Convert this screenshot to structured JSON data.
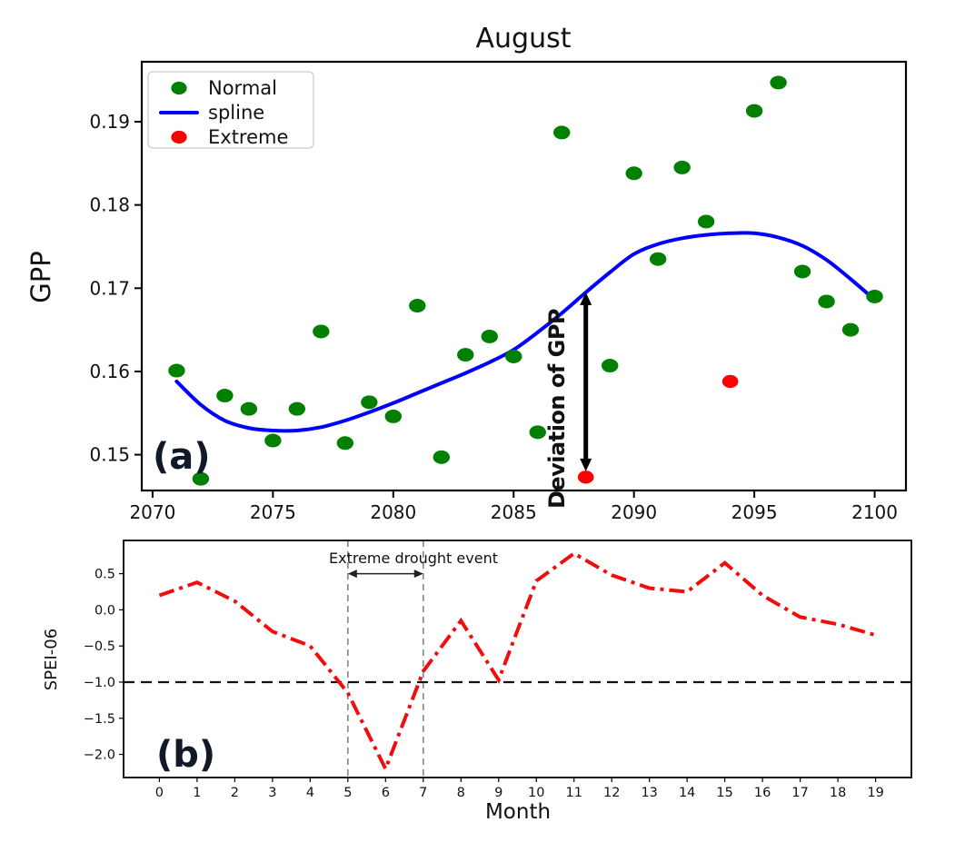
{
  "figure": {
    "background": "#ffffff"
  },
  "chart_data": [
    {
      "type": "scatter",
      "panel": "(a)",
      "title": "August",
      "ylabel": "GPP",
      "xlim": [
        2069.55,
        2101.3
      ],
      "ylim": [
        0.1457,
        0.1972
      ],
      "xticks": [
        2070,
        2075,
        2080,
        2085,
        2090,
        2095,
        2100
      ],
      "yticks": [
        0.15,
        0.16,
        0.17,
        0.18,
        0.19
      ],
      "grid": false,
      "legend_position": "upper-left",
      "legend": [
        {
          "label": "Normal",
          "marker": "dot",
          "color": "#008000"
        },
        {
          "label": "spline",
          "marker": "line",
          "color": "#0000ff"
        },
        {
          "label": "Extreme",
          "marker": "dot",
          "color": "#ff0000"
        }
      ],
      "colors": {
        "normal": "#008000",
        "spline": "#0000ff",
        "extreme": "#ff0000",
        "arrow": "#000000"
      },
      "normal_points": [
        [
          2071,
          0.1601
        ],
        [
          2072,
          0.1471
        ],
        [
          2073,
          0.1571
        ],
        [
          2074,
          0.1555
        ],
        [
          2075,
          0.1517
        ],
        [
          2076,
          0.1555
        ],
        [
          2077,
          0.1648
        ],
        [
          2078,
          0.1514
        ],
        [
          2079,
          0.1563
        ],
        [
          2080,
          0.1546
        ],
        [
          2081,
          0.1679
        ],
        [
          2082,
          0.1497
        ],
        [
          2083,
          0.162
        ],
        [
          2084,
          0.1642
        ],
        [
          2085,
          0.1618
        ],
        [
          2086,
          0.1527
        ],
        [
          2087,
          0.1887
        ],
        [
          2089,
          0.1607
        ],
        [
          2090,
          0.1838
        ],
        [
          2091,
          0.1735
        ],
        [
          2092,
          0.1845
        ],
        [
          2093,
          0.178
        ],
        [
          2095,
          0.1913
        ],
        [
          2096,
          0.1947
        ],
        [
          2097,
          0.172
        ],
        [
          2098,
          0.1684
        ],
        [
          2099,
          0.165
        ],
        [
          2100,
          0.169
        ]
      ],
      "extreme_points": [
        [
          2088,
          0.1473
        ],
        [
          2094,
          0.1588
        ]
      ],
      "spline": {
        "x": [
          2071,
          2072,
          2073,
          2074,
          2075,
          2076,
          2077,
          2078,
          2079,
          2080,
          2081,
          2082,
          2083,
          2084,
          2085,
          2086,
          2087,
          2088,
          2089,
          2090,
          2091,
          2092,
          2093,
          2094,
          2095,
          2096,
          2097,
          2098,
          2099,
          2100
        ],
        "y": [
          0.1588,
          0.156,
          0.1541,
          0.1532,
          0.1529,
          0.1529,
          0.1533,
          0.1541,
          0.1551,
          0.1562,
          0.1574,
          0.1586,
          0.1598,
          0.1611,
          0.1626,
          0.1647,
          0.167,
          0.1695,
          0.1719,
          0.1741,
          0.1753,
          0.176,
          0.1764,
          0.1766,
          0.1766,
          0.1761,
          0.1751,
          0.1734,
          0.1711,
          0.1686
        ]
      },
      "annotation": {
        "text": "Deviation of GPP",
        "arrow_x": 2088,
        "arrow_top": 0.1695,
        "arrow_bottom": 0.148
      }
    },
    {
      "type": "line",
      "panel": "(b)",
      "xlabel": "Month",
      "ylabel": "SPEI-06",
      "xlim": [
        -0.95,
        19.95
      ],
      "ylim": [
        -2.32,
        0.96
      ],
      "xticks": [
        0,
        1,
        2,
        3,
        4,
        5,
        6,
        7,
        8,
        9,
        10,
        11,
        12,
        13,
        14,
        15,
        16,
        17,
        18,
        19
      ],
      "yticks": [
        0.5,
        0.0,
        -0.5,
        -1.0,
        -1.5,
        -2.0
      ],
      "grid": false,
      "line_style": "dash-dot",
      "colors": {
        "line": "#f20d0d",
        "threshold": "#111111",
        "event_line": "#8a8a8a"
      },
      "x": [
        0,
        1,
        2,
        3,
        4,
        5,
        6,
        7,
        8,
        9,
        10,
        11,
        12,
        13,
        14,
        15,
        16,
        17,
        18,
        19
      ],
      "y": [
        0.2,
        0.38,
        0.12,
        -0.3,
        -0.5,
        -1.15,
        -2.2,
        -0.85,
        -0.15,
        -0.97,
        0.4,
        0.78,
        0.48,
        0.3,
        0.25,
        0.65,
        0.2,
        -0.1,
        -0.2,
        -0.35
      ],
      "threshold_value": -1.0,
      "event_lines": [
        5,
        7
      ],
      "annotation": {
        "text": "Extreme drought event",
        "arrow_y": 0.5
      }
    }
  ]
}
